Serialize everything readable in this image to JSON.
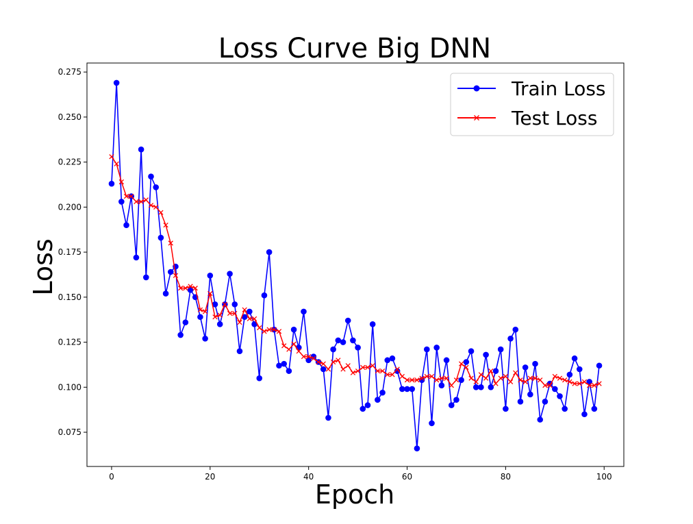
{
  "chart_data": {
    "type": "line",
    "title": "Loss Curve Big DNN",
    "xlabel": "Epoch",
    "ylabel": "Loss",
    "xlim": [
      -5,
      104
    ],
    "ylim": [
      0.056,
      0.28
    ],
    "xticks": [
      0,
      20,
      40,
      60,
      80,
      100
    ],
    "yticks": [
      0.075,
      0.1,
      0.125,
      0.15,
      0.175,
      0.2,
      0.225,
      0.25,
      0.275
    ],
    "grid": false,
    "legend_position": "top-right",
    "series": [
      {
        "name": "Train Loss",
        "color": "#0000ff",
        "marker": "circle",
        "values": [
          0.213,
          0.269,
          0.203,
          0.19,
          0.206,
          0.172,
          0.232,
          0.161,
          0.217,
          0.211,
          0.183,
          0.152,
          0.164,
          0.167,
          0.129,
          0.136,
          0.154,
          0.15,
          0.139,
          0.127,
          0.162,
          0.146,
          0.135,
          0.146,
          0.163,
          0.146,
          0.12,
          0.139,
          0.142,
          0.135,
          0.105,
          0.151,
          0.175,
          0.132,
          0.112,
          0.113,
          0.109,
          0.132,
          0.122,
          0.142,
          0.115,
          0.117,
          0.114,
          0.11,
          0.083,
          0.121,
          0.126,
          0.125,
          0.137,
          0.126,
          0.122,
          0.088,
          0.09,
          0.135,
          0.093,
          0.097,
          0.115,
          0.116,
          0.109,
          0.099,
          0.099,
          0.099,
          0.066,
          0.104,
          0.121,
          0.08,
          0.122,
          0.101,
          0.115,
          0.09,
          0.093,
          0.104,
          0.114,
          0.12,
          0.1,
          0.1,
          0.118,
          0.1,
          0.109,
          0.121,
          0.088,
          0.127,
          0.132,
          0.092,
          0.111,
          0.096,
          0.113,
          0.082,
          0.092,
          0.102,
          0.099,
          0.095,
          0.088,
          0.107,
          0.116,
          0.11,
          0.085,
          0.103,
          0.088,
          0.112
        ]
      },
      {
        "name": "Test Loss",
        "color": "#ff0000",
        "marker": "x",
        "values": [
          0.228,
          0.224,
          0.214,
          0.206,
          0.206,
          0.203,
          0.203,
          0.204,
          0.201,
          0.2,
          0.197,
          0.19,
          0.18,
          0.162,
          0.155,
          0.155,
          0.156,
          0.155,
          0.143,
          0.142,
          0.152,
          0.139,
          0.14,
          0.146,
          0.141,
          0.141,
          0.136,
          0.143,
          0.138,
          0.138,
          0.133,
          0.131,
          0.132,
          0.132,
          0.131,
          0.123,
          0.121,
          0.124,
          0.12,
          0.117,
          0.117,
          0.116,
          0.114,
          0.113,
          0.11,
          0.114,
          0.115,
          0.11,
          0.112,
          0.108,
          0.109,
          0.111,
          0.111,
          0.112,
          0.109,
          0.109,
          0.107,
          0.107,
          0.11,
          0.106,
          0.104,
          0.104,
          0.104,
          0.105,
          0.106,
          0.106,
          0.104,
          0.105,
          0.105,
          0.101,
          0.104,
          0.113,
          0.111,
          0.105,
          0.103,
          0.107,
          0.105,
          0.109,
          0.102,
          0.105,
          0.106,
          0.103,
          0.108,
          0.104,
          0.103,
          0.105,
          0.105,
          0.104,
          0.101,
          0.101,
          0.106,
          0.105,
          0.104,
          0.103,
          0.102,
          0.102,
          0.103,
          0.101,
          0.101,
          0.102
        ]
      }
    ]
  }
}
